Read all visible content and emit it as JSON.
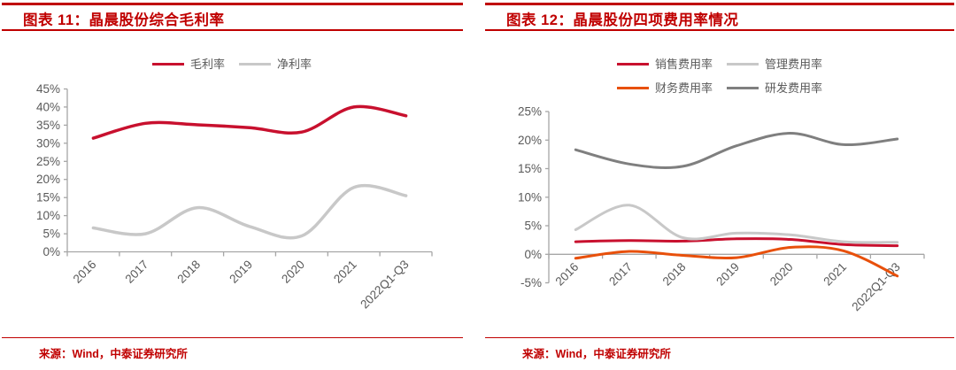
{
  "colors": {
    "accent_red": "#c00000",
    "axis_line": "#a6a6a6",
    "axis_text": "#595959"
  },
  "chart_data": [
    {
      "type": "line",
      "title": "图表 11：晶晨股份综合毛利率",
      "source_note": "来源：Wind，中泰证券研究所",
      "categories": [
        "2016",
        "2017",
        "2018",
        "2019",
        "2020",
        "2021",
        "2022Q1-Q3"
      ],
      "series": [
        {
          "name": "毛利率",
          "color": "#c8102e",
          "values": [
            31.4,
            35.5,
            35.1,
            34.3,
            33.1,
            40.0,
            37.6
          ]
        },
        {
          "name": "净利率",
          "color": "#c8c8c8",
          "values": [
            6.6,
            5.0,
            12.2,
            7.0,
            4.4,
            17.8,
            15.5
          ]
        }
      ],
      "ylim": [
        0,
        45
      ],
      "ystep": 5,
      "y_tick_format": "percent",
      "legend_position": "top",
      "grid": false
    },
    {
      "type": "line",
      "title": "图表 12：晶晨股份四项费用率情况",
      "source_note": "来源：Wind，中泰证券研究所",
      "categories": [
        "2016",
        "2017",
        "2018",
        "2019",
        "2020",
        "2021",
        "2022Q1-Q3"
      ],
      "series": [
        {
          "name": "销售费用率",
          "color": "#c8102e",
          "values": [
            2.2,
            2.4,
            2.3,
            2.7,
            2.6,
            1.7,
            1.5
          ]
        },
        {
          "name": "管理费用率",
          "color": "#c8c8c8",
          "values": [
            4.3,
            8.6,
            2.9,
            3.7,
            3.4,
            2.2,
            2.1
          ]
        },
        {
          "name": "财务费用率",
          "color": "#e8500b",
          "values": [
            -0.7,
            0.5,
            -0.2,
            -0.6,
            1.2,
            0.6,
            -3.8
          ]
        },
        {
          "name": "研发费用率",
          "color": "#7f7f7f",
          "values": [
            18.3,
            15.8,
            15.4,
            19.0,
            21.2,
            19.2,
            20.2
          ]
        }
      ],
      "ylim": [
        -5,
        25
      ],
      "ystep": 5,
      "y_tick_format": "percent",
      "legend_position": "top",
      "grid": false
    }
  ]
}
